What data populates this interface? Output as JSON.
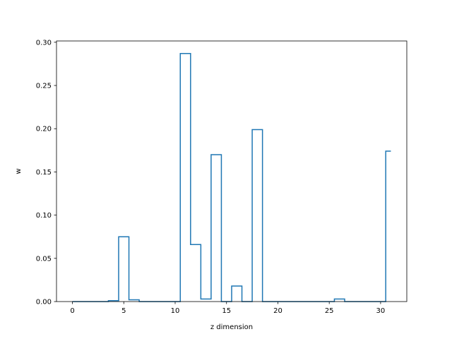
{
  "chart_data": {
    "type": "line",
    "style": "step-post",
    "title": "",
    "xlabel": "z dimension",
    "ylabel": "w",
    "xlim": [
      -1.55,
      32.55
    ],
    "ylim": [
      0,
      0.3015
    ],
    "xticks": [
      0,
      5,
      10,
      15,
      20,
      25,
      30
    ],
    "yticks": [
      0.0,
      0.05,
      0.1,
      0.15,
      0.2,
      0.25,
      0.3
    ],
    "ytick_labels": [
      "0.00",
      "0.05",
      "0.10",
      "0.15",
      "0.20",
      "0.25",
      "0.30"
    ],
    "grid": false,
    "series": [
      {
        "color": "#1f77b4",
        "x": [
          0,
          1,
          2,
          3,
          4,
          5,
          6,
          7,
          8,
          9,
          10,
          11,
          12,
          13,
          14,
          15,
          16,
          17,
          18,
          19,
          20,
          21,
          22,
          23,
          24,
          25,
          26,
          27,
          28,
          29,
          30,
          31
        ],
        "values": [
          0,
          0,
          0,
          0,
          0.001,
          0.075,
          0.002,
          0,
          0,
          0,
          0,
          0.287,
          0.066,
          0.003,
          0.17,
          0,
          0.018,
          0,
          0.199,
          0,
          0,
          0,
          0,
          0,
          0,
          0,
          0.003,
          0,
          0,
          0,
          0,
          0.174
        ]
      }
    ]
  }
}
